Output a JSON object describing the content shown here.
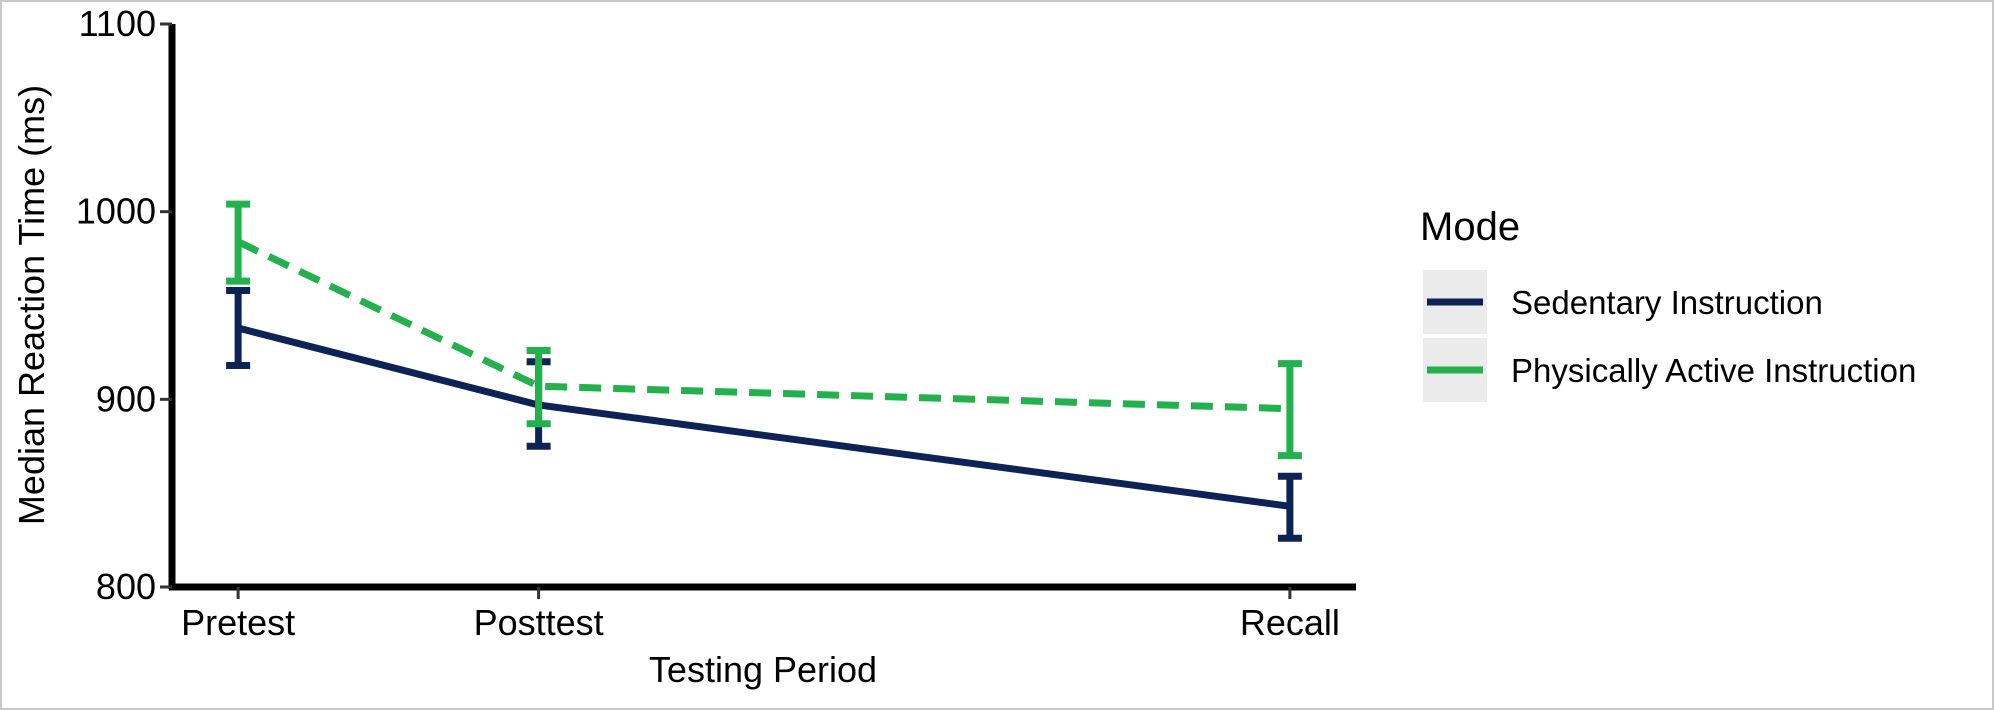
{
  "chart_data": {
    "type": "line",
    "xlabel": "Testing Period",
    "ylabel": "Median Reaction Time (ms)",
    "categories": [
      "Pretest",
      "Posttest",
      "Recall"
    ],
    "x": [
      1,
      2,
      4.5
    ],
    "ylim": [
      800,
      1100
    ],
    "yticks": [
      800,
      900,
      1000,
      1100
    ],
    "grid": false,
    "legend": {
      "title": "Mode",
      "placement": "right"
    },
    "series": [
      {
        "name": "Sedentary Instruction",
        "color": "#0d2255",
        "line_style": "solid",
        "values": [
          938,
          897,
          843
        ],
        "error_low": [
          918,
          875,
          826
        ],
        "error_high": [
          958,
          920,
          859
        ]
      },
      {
        "name": "Physically Active Instruction",
        "color": "#22b14c",
        "line_style": "dashed",
        "values": [
          984,
          907,
          895
        ],
        "error_low": [
          963,
          887,
          870
        ],
        "error_high": [
          1004,
          926,
          919
        ]
      }
    ]
  }
}
